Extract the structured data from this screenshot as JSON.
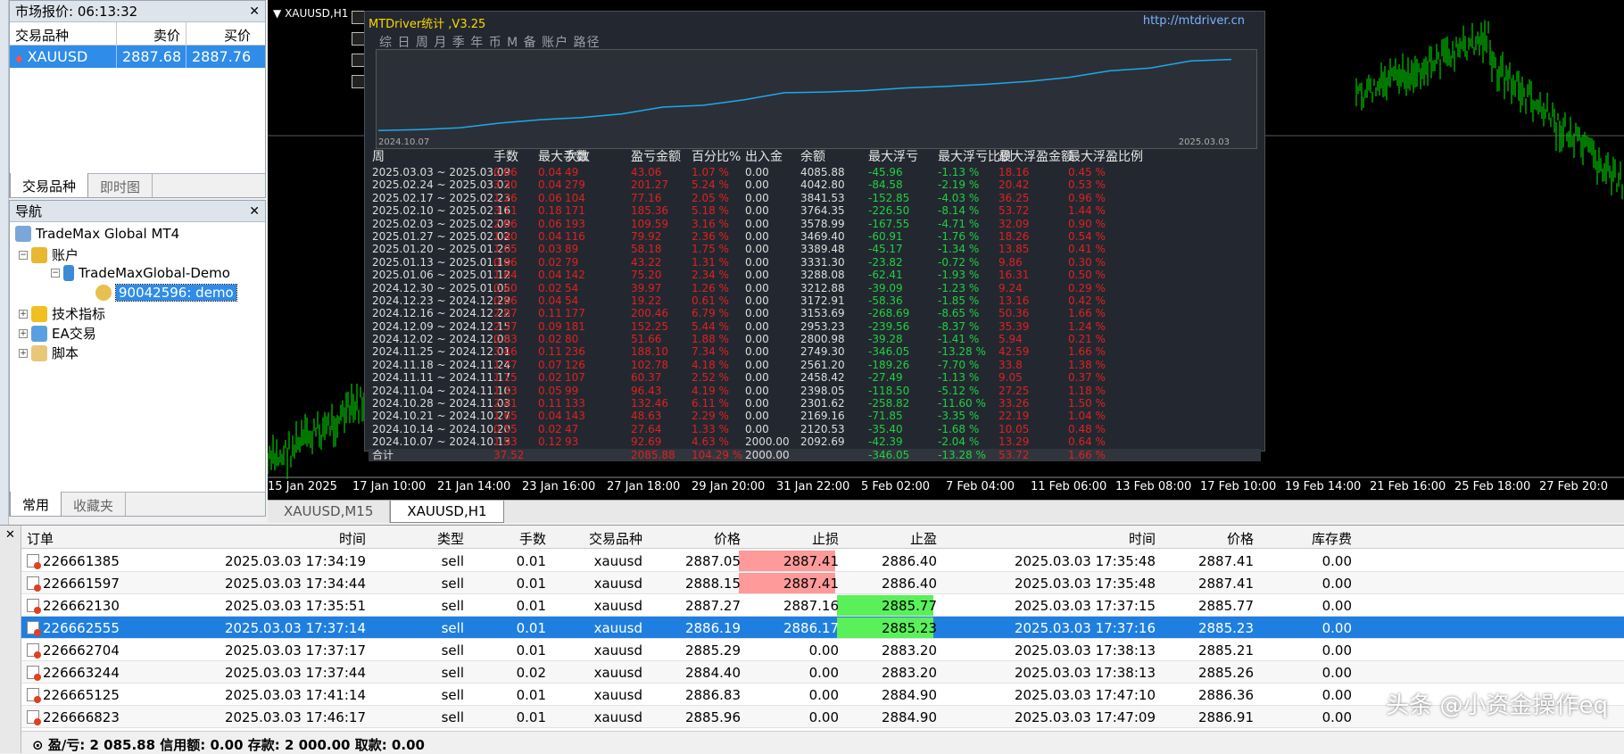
{
  "market_watch": {
    "title": "市场报价: 06:13:32",
    "headers": [
      "交易品种",
      "卖价",
      "买价"
    ],
    "row": {
      "symbol": "XAUUSD",
      "bid": "2887.68",
      "ask": "2887.76"
    },
    "tabs": [
      "交易品种",
      "即时图"
    ]
  },
  "navigator": {
    "title": "导航",
    "root": "TradeMax Global MT4",
    "accounts": "账户",
    "server": "TradeMaxGlobal-Demo",
    "account": "90042596: demo",
    "indicators": "技术指标",
    "experts": "EA交易",
    "scripts": "脚本",
    "tabs": [
      "常用",
      "收藏夹"
    ]
  },
  "chart": {
    "title": "XAUUSD,H1",
    "time_axis": [
      "15 Jan 2025",
      "17 Jan 10:00",
      "21 Jan 14:00",
      "23 Jan 16:00",
      "27 Jan 18:00",
      "29 Jan 20:00",
      "31 Jan 22:00",
      "5 Feb 02:00",
      "7 Feb 04:00",
      "11 Feb 06:00",
      "13 Feb 08:00",
      "17 Feb 10:00",
      "19 Feb 14:00",
      "21 Feb 16:00",
      "25 Feb 18:00",
      "27 Feb 20:0"
    ]
  },
  "stats": {
    "title": "MTDriver统计 ,V3.25",
    "url": "http://mtdriver.cn",
    "tabs": "综 日 周 月 季 年 币 M 备 账户          路径",
    "mini_start": "2024.10.07",
    "mini_end": "2025.03.03",
    "headers": [
      "周",
      "手数",
      "最大手数",
      "次数",
      "盈亏金额",
      "百分比%",
      "出入金",
      "余额",
      "最大浮亏",
      "最大浮亏比例",
      "最大浮盈金额",
      "最大浮盈比例"
    ],
    "rows": [
      [
        "2025.03.03 ~ 2025.03.09",
        "0.66",
        "0.04",
        "49",
        "43.06",
        "1.07 %",
        "0.00",
        "4085.88",
        "-45.96",
        "-1.13 %",
        "18.16",
        "0.45 %"
      ],
      [
        "2025.02.24 ~ 2025.03.02",
        "3.30",
        "0.04",
        "279",
        "201.27",
        "5.24 %",
        "0.00",
        "4042.80",
        "-84.58",
        "-2.19 %",
        "20.42",
        "0.53 %"
      ],
      [
        "2025.02.17 ~ 2025.02.23",
        "1.26",
        "0.06",
        "104",
        "77.16",
        "2.05 %",
        "0.00",
        "3841.53",
        "-152.85",
        "-4.03 %",
        "36.25",
        "0.96 %"
      ],
      [
        "2025.02.10 ~ 2025.02.16",
        "3.11",
        "0.18",
        "171",
        "185.36",
        "5.18 %",
        "0.00",
        "3764.35",
        "-226.50",
        "-8.14 %",
        "53.72",
        "1.44 %"
      ],
      [
        "2025.02.03 ~ 2025.02.09",
        "2.66",
        "0.06",
        "193",
        "109.59",
        "3.16 %",
        "0.00",
        "3578.99",
        "-167.55",
        "-4.71 %",
        "32.09",
        "0.90 %"
      ],
      [
        "2025.01.27 ~ 2025.02.02",
        "1.40",
        "0.04",
        "116",
        "79.92",
        "2.36 %",
        "0.00",
        "3469.40",
        "-60.91",
        "-1.76 %",
        "18.26",
        "0.54 %"
      ],
      [
        "2025.01.20 ~ 2025.01.26",
        "1.05",
        "0.03",
        "89",
        "58.18",
        "1.75 %",
        "0.00",
        "3389.48",
        "-45.17",
        "-1.34 %",
        "13.85",
        "0.41 %"
      ],
      [
        "2025.01.13 ~ 2025.01.19",
        "0.86",
        "0.02",
        "79",
        "43.22",
        "1.31 %",
        "0.00",
        "3331.30",
        "-23.82",
        "-0.72 %",
        "9.86",
        "0.30 %"
      ],
      [
        "2025.01.06 ~ 2025.01.12",
        "1.64",
        "0.04",
        "142",
        "75.20",
        "2.34 %",
        "0.00",
        "3288.08",
        "-62.41",
        "-1.93 %",
        "16.31",
        "0.50 %"
      ],
      [
        "2024.12.30 ~ 2025.01.05",
        "0.60",
        "0.02",
        "54",
        "39.97",
        "1.26 %",
        "0.00",
        "3212.88",
        "-39.09",
        "-1.23 %",
        "9.24",
        "0.29 %"
      ],
      [
        "2024.12.23 ~ 2024.12.29",
        "0.66",
        "0.04",
        "54",
        "19.22",
        "0.61 %",
        "0.00",
        "3172.91",
        "-58.36",
        "-1.85 %",
        "13.16",
        "0.42 %"
      ],
      [
        "2024.12.16 ~ 2024.12.22",
        "2.87",
        "0.11",
        "177",
        "200.46",
        "6.79 %",
        "0.00",
        "3153.69",
        "-268.69",
        "-8.65 %",
        "50.36",
        "1.66 %"
      ],
      [
        "2024.12.09 ~ 2024.12.15",
        "2.37",
        "0.09",
        "181",
        "152.25",
        "5.44 %",
        "0.00",
        "2953.23",
        "-239.56",
        "-8.37 %",
        "35.39",
        "1.24 %"
      ],
      [
        "2024.12.02 ~ 2024.12.08",
        "0.83",
        "0.02",
        "80",
        "51.66",
        "1.88 %",
        "0.00",
        "2800.98",
        "-39.28",
        "-1.41 %",
        "5.94",
        "0.21 %"
      ],
      [
        "2024.11.25 ~ 2024.12.01",
        "3.46",
        "0.11",
        "236",
        "188.10",
        "7.34 %",
        "0.00",
        "2749.30",
        "-346.05",
        "-13.28 %",
        "42.59",
        "1.66 %"
      ],
      [
        "2024.11.18 ~ 2024.11.24",
        "1.77",
        "0.07",
        "126",
        "102.78",
        "4.18 %",
        "0.00",
        "2561.20",
        "-189.26",
        "-7.70 %",
        "33.8",
        "1.38 %"
      ],
      [
        "2024.11.11 ~ 2024.11.17",
        "1.15",
        "0.02",
        "107",
        "60.37",
        "2.52 %",
        "0.00",
        "2458.42",
        "-27.49",
        "-1.13 %",
        "9.05",
        "0.37 %"
      ],
      [
        "2024.11.04 ~ 2024.11.10",
        "1.33",
        "0.05",
        "99",
        "96.43",
        "4.19 %",
        "0.00",
        "2398.05",
        "-118.50",
        "-5.12 %",
        "27.25",
        "1.18 %"
      ],
      [
        "2024.10.28 ~ 2024.11.03",
        "2.41",
        "0.11",
        "133",
        "132.46",
        "6.11 %",
        "0.00",
        "2301.62",
        "-258.82",
        "-11.60 %",
        "33.26",
        "1.50 %"
      ],
      [
        "2024.10.21 ~ 2024.10.27",
        "1.65",
        "0.04",
        "143",
        "48.63",
        "2.29 %",
        "0.00",
        "2169.16",
        "-71.85",
        "-3.35 %",
        "22.19",
        "1.04 %"
      ],
      [
        "2024.10.14 ~ 2024.10.20",
        "0.55",
        "0.02",
        "47",
        "27.64",
        "1.33 %",
        "0.00",
        "2120.53",
        "-35.40",
        "-1.68 %",
        "10.05",
        "0.48 %"
      ],
      [
        "2024.10.07 ~ 2024.10.13",
        "1.93",
        "0.12",
        "93",
        "92.69",
        "4.63 %",
        "2000.00",
        "2092.69",
        "-42.39",
        "-2.04 %",
        "13.29",
        "0.64 %"
      ]
    ],
    "total": [
      "合计",
      "37.52",
      "",
      "",
      "2085.88",
      "104.29 %",
      "2000.00",
      "",
      "-346.05",
      "-13.28 %",
      "53.72",
      "1.66 %"
    ],
    "curve": [
      2092.69,
      2120.53,
      2169.16,
      2301.62,
      2398.05,
      2458.42,
      2561.2,
      2749.3,
      2800.98,
      2953.23,
      3153.69,
      3172.91,
      3212.88,
      3288.08,
      3331.3,
      3389.48,
      3469.4,
      3578.99,
      3764.35,
      3841.53,
      4042.8,
      4085.88
    ]
  },
  "chart_tabs": [
    "XAUUSD,M15",
    "XAUUSD,H1"
  ],
  "terminal": {
    "headers": [
      "订单",
      "时间",
      "类型",
      "手数",
      "交易品种",
      "价格",
      "止损",
      "止盈",
      "时间",
      "价格",
      "库存费"
    ],
    "rows": [
      [
        "226661385",
        "2025.03.03 17:34:19",
        "sell",
        "0.01",
        "xauusd",
        "2887.05",
        "2887.41",
        "2886.40",
        "2025.03.03 17:35:48",
        "2887.41",
        "0.00"
      ],
      [
        "226661597",
        "2025.03.03 17:34:44",
        "sell",
        "0.01",
        "xauusd",
        "2888.15",
        "2887.41",
        "2886.40",
        "2025.03.03 17:35:48",
        "2887.41",
        "0.00"
      ],
      [
        "226662130",
        "2025.03.03 17:35:51",
        "sell",
        "0.01",
        "xauusd",
        "2887.27",
        "2887.16",
        "2885.77",
        "2025.03.03 17:37:15",
        "2885.77",
        "0.00"
      ],
      [
        "226662555",
        "2025.03.03 17:37:14",
        "sell",
        "0.01",
        "xauusd",
        "2886.19",
        "2886.17",
        "2885.23",
        "2025.03.03 17:37:16",
        "2885.23",
        "0.00"
      ],
      [
        "226662704",
        "2025.03.03 17:37:17",
        "sell",
        "0.01",
        "xauusd",
        "2885.29",
        "0.00",
        "2883.20",
        "2025.03.03 17:38:13",
        "2885.21",
        "0.00"
      ],
      [
        "226663244",
        "2025.03.03 17:37:44",
        "sell",
        "0.02",
        "xauusd",
        "2884.40",
        "0.00",
        "2883.20",
        "2025.03.03 17:38:13",
        "2885.26",
        "0.00"
      ],
      [
        "226665125",
        "2025.03.03 17:41:14",
        "sell",
        "0.01",
        "xauusd",
        "2886.83",
        "0.00",
        "2884.90",
        "2025.03.03 17:47:10",
        "2886.36",
        "0.00"
      ],
      [
        "226666823",
        "2025.03.03 17:46:17",
        "sell",
        "0.01",
        "xauusd",
        "2885.96",
        "0.00",
        "2884.90",
        "2025.03.03 17:47:09",
        "2886.91",
        "0.00"
      ]
    ],
    "status": "盈/亏: 2 085.88  信用额: 0.00  存款: 2 000.00  取款: 0.00"
  },
  "watermark": "头条 @小资金操作eq",
  "colors": {
    "sl_hit": "#ff9a9a",
    "tp_hit": "#5af05a",
    "selected": "#1f7fe0",
    "stat_red": "#e02020",
    "stat_green": "#20d040",
    "candle": "#00c800"
  }
}
